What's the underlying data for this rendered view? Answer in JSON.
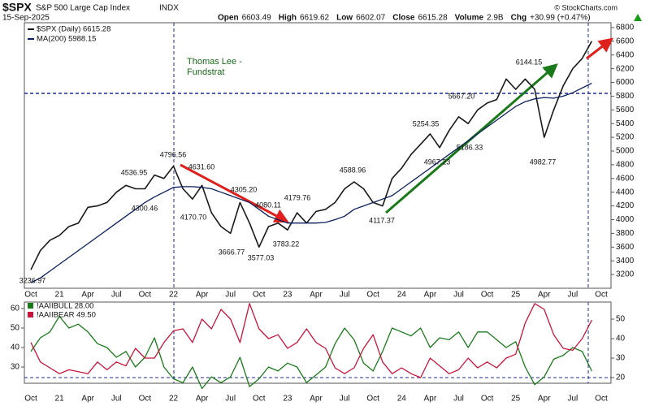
{
  "header": {
    "symbol": "$SPX",
    "name": "S&P 500 Large Cap Index",
    "exchange": "INDX",
    "date": "15-Sep-2025",
    "watermark": "© StockCharts.com",
    "stats": [
      {
        "name": "Open",
        "value": 6603.49
      },
      {
        "name": "High",
        "value": 6619.62
      },
      {
        "name": "Low",
        "value": 6602.07
      },
      {
        "name": "Close",
        "value": 6615.28
      },
      {
        "name": "Volume",
        "value": "2.9B"
      },
      {
        "name": "Chg",
        "value": "+30.99 (+0.47%)"
      }
    ]
  },
  "chart_data": [
    {
      "type": "line",
      "categories": [
        "Oct",
        null,
        null,
        "21",
        null,
        null,
        "Apr",
        null,
        null,
        "Jul",
        null,
        null,
        "Oct",
        null,
        null,
        "22",
        null,
        null,
        "Apr",
        null,
        null,
        "Jul",
        null,
        null,
        "Oct",
        null,
        null,
        "23",
        null,
        null,
        "Apr",
        null,
        null,
        "Jul",
        null,
        null,
        "Oct",
        null,
        null,
        "24",
        null,
        null,
        "Apr",
        null,
        null,
        "Jul",
        null,
        null,
        "Oct",
        null,
        null,
        "25",
        null,
        null,
        "Apr",
        null,
        null,
        "Jul",
        null,
        null,
        "Oct"
      ],
      "series": [
        {
          "name": "$SPX (Daily) 6615.28",
          "color": "#1a1a1a",
          "values": [
            3270,
            3550,
            3700,
            3770,
            3900,
            3950,
            4180,
            4200,
            4250,
            4400,
            4500,
            4450,
            4450,
            4650,
            4600,
            4780,
            4450,
            4300,
            4500,
            4100,
            3900,
            3800,
            4250,
            3950,
            3600,
            3900,
            3950,
            3850,
            4100,
            3950,
            4120,
            4150,
            4250,
            4450,
            4550,
            4450,
            4250,
            4200,
            4600,
            4750,
            4950,
            5100,
            5250,
            5050,
            5300,
            5500,
            5400,
            5600,
            5700,
            5750,
            6050,
            5900,
            6050,
            5900,
            5200,
            5600,
            5950,
            6200,
            6350,
            6600,
            null
          ]
        },
        {
          "name": "MA(200) 5988.15",
          "color": "#0b1f5c",
          "values": [
            3080,
            3150,
            3250,
            3350,
            3450,
            3550,
            3650,
            3750,
            3850,
            3950,
            4050,
            4150,
            4250,
            4330,
            4400,
            4470,
            4480,
            4480,
            4470,
            4450,
            4400,
            4350,
            4300,
            4250,
            4150,
            4050,
            4000,
            3950,
            3950,
            3950,
            3950,
            3960,
            4000,
            4050,
            4150,
            4200,
            4250,
            4300,
            4350,
            4450,
            4550,
            4650,
            4750,
            4850,
            4950,
            5050,
            5150,
            5250,
            5350,
            5450,
            5550,
            5650,
            5720,
            5760,
            5780,
            5770,
            5800,
            5850,
            5920,
            5988.15,
            null
          ]
        }
      ],
      "ylim": [
        3000,
        6870
      ],
      "yticks": [
        3200,
        3400,
        3600,
        3800,
        4000,
        4200,
        4400,
        4600,
        4800,
        5000,
        5200,
        5400,
        5600,
        5800,
        6000,
        6200,
        6400,
        6600,
        6800
      ],
      "grid": false,
      "annotation": [
        "Thomas Lee -",
        "Fundstrat"
      ],
      "point_labels": [
        3236.97,
        4536.95,
        4300.46,
        4796.56,
        {
          "value": 4631.6,
          "label": "4631.60"
        },
        {
          "value": 4170.7,
          "label": "4170.70"
        },
        3666.77,
        {
          "value": 4305.2,
          "label": "4305.20"
        },
        3577.03,
        4080.11,
        4179.76,
        3783.22,
        4588.96,
        4117.37,
        5254.35,
        4967.23,
        5186.33,
        {
          "value": 5667.2,
          "label": "5667.20"
        },
        6144.15,
        4982.77
      ]
    },
    {
      "type": "line",
      "series": [
        {
          "name": "!AAIIBULL 28.00",
          "color": "#1a7a1a",
          "values": [
            38,
            45,
            48,
            56,
            50,
            52,
            48,
            42,
            40,
            35,
            38,
            30,
            35,
            45,
            30,
            24,
            22,
            30,
            19,
            25,
            22,
            25,
            35,
            20,
            24,
            30,
            28,
            32,
            30,
            22,
            26,
            30,
            42,
            50,
            44,
            32,
            28,
            38,
            50,
            48,
            46,
            50,
            40,
            45,
            44,
            48,
            40,
            48,
            48,
            44,
            40,
            43,
            30,
            21,
            25,
            34,
            36,
            40,
            38,
            28,
            null
          ]
        },
        {
          "name": "!AAIIBEAR 49.50",
          "color": "#c8143c",
          "axis": "y2",
          "values": [
            38,
            28,
            25,
            22,
            24,
            23,
            22,
            28,
            24,
            28,
            26,
            35,
            30,
            30,
            38,
            44,
            45,
            38,
            50,
            45,
            55,
            50,
            38,
            58,
            45,
            40,
            42,
            35,
            38,
            45,
            38,
            35,
            25,
            22,
            25,
            35,
            42,
            28,
            22,
            25,
            22,
            20,
            30,
            26,
            22,
            24,
            30,
            25,
            28,
            25,
            30,
            32,
            48,
            58,
            55,
            42,
            35,
            34,
            40,
            49.5,
            null
          ]
        }
      ],
      "ylim": [
        21.7,
        63.3
      ],
      "yticks": [
        30,
        40,
        50,
        60
      ],
      "y2lim": [
        17.1,
        58.75
      ],
      "y2ticks": [
        20,
        30,
        40,
        50
      ]
    }
  ]
}
